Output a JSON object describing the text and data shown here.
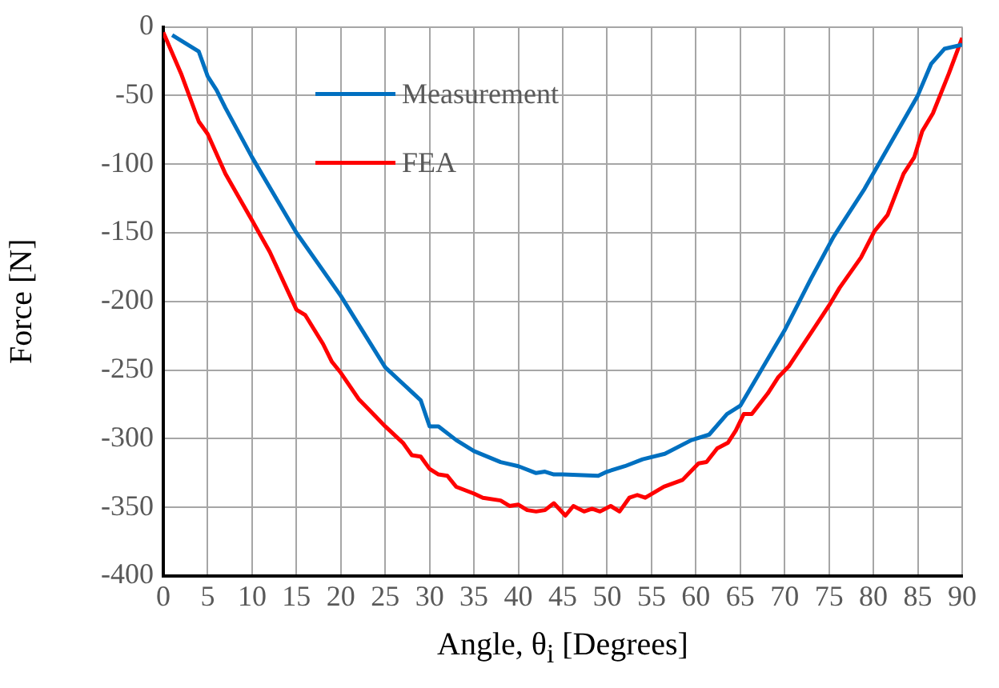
{
  "chart_data": {
    "type": "line",
    "xlabel": "Angle, θ$_{i}$ [Degrees]",
    "ylabel": "Force [N]",
    "xlim": [
      0,
      90
    ],
    "xticks": [
      0,
      5,
      10,
      15,
      20,
      25,
      30,
      35,
      40,
      45,
      50,
      55,
      60,
      65,
      70,
      75,
      80,
      85,
      90
    ],
    "ylim": [
      -400,
      0
    ],
    "yticks": [
      -400,
      -350,
      -300,
      -250,
      -200,
      -150,
      -100,
      -50,
      0
    ],
    "grid": true,
    "legend": "top left",
    "marker": "none",
    "line_style": "solid",
    "series": [
      {
        "name": "Measurement",
        "color": "#0070c0",
        "x": [
          1,
          4,
          5,
          6,
          7,
          10,
          15,
          20,
          25,
          29,
          30,
          31,
          33,
          35,
          38,
          40,
          42,
          43,
          44,
          45,
          49,
          50,
          52,
          54,
          56.5,
          59.5,
          61.5,
          63.5,
          65,
          70,
          73,
          75.5,
          79,
          82,
          85,
          86.5,
          88,
          90
        ],
        "values": [
          -6,
          -18,
          -36,
          -46,
          -59,
          -95,
          -150,
          -196,
          -248,
          -272,
          -291,
          -291,
          -301,
          -309,
          -317,
          -320,
          -325,
          -324,
          -326,
          -326,
          -327,
          -324,
          -320,
          -315,
          -311,
          -301,
          -297,
          -282,
          -276,
          -221,
          -183,
          -153,
          -118,
          -84,
          -50,
          -27,
          -16,
          -13
        ]
      },
      {
        "name": "FEA",
        "color": "#ff0000",
        "x": [
          0,
          2,
          4,
          5,
          7,
          10,
          12,
          15,
          16,
          18,
          19,
          20,
          22,
          25,
          27,
          28,
          29,
          30,
          31,
          32,
          33,
          35,
          36,
          38,
          39,
          40,
          41,
          42,
          43,
          44,
          45.3,
          46.2,
          47.4,
          48.3,
          49.2,
          50.4,
          51.4,
          52.5,
          53.4,
          54.3,
          56.4,
          58.5,
          60.3,
          61.2,
          62.4,
          63.6,
          64.5,
          65.4,
          66.3,
          68.1,
          69.3,
          70.5,
          75,
          76.2,
          78.6,
          80.1,
          81.6,
          83.4,
          84.6,
          85.5,
          86.7,
          88.5,
          90
        ],
        "values": [
          -4,
          -34,
          -69,
          -78,
          -107,
          -141,
          -164,
          -206,
          -210,
          -231,
          -244,
          -252,
          -271,
          -291,
          -303,
          -312,
          -313,
          -322,
          -326,
          -327,
          -335,
          -340,
          -343,
          -345,
          -349,
          -348,
          -352,
          -353,
          -352,
          -347,
          -356,
          -349,
          -353,
          -351,
          -353,
          -349,
          -353,
          -343,
          -341,
          -343,
          -335,
          -330,
          -318,
          -317,
          -307,
          -303,
          -294,
          -282,
          -282,
          -267,
          -255,
          -247,
          -203,
          -190,
          -168,
          -149,
          -137,
          -107,
          -95,
          -76,
          -63,
          -34,
          -8
        ]
      }
    ]
  }
}
